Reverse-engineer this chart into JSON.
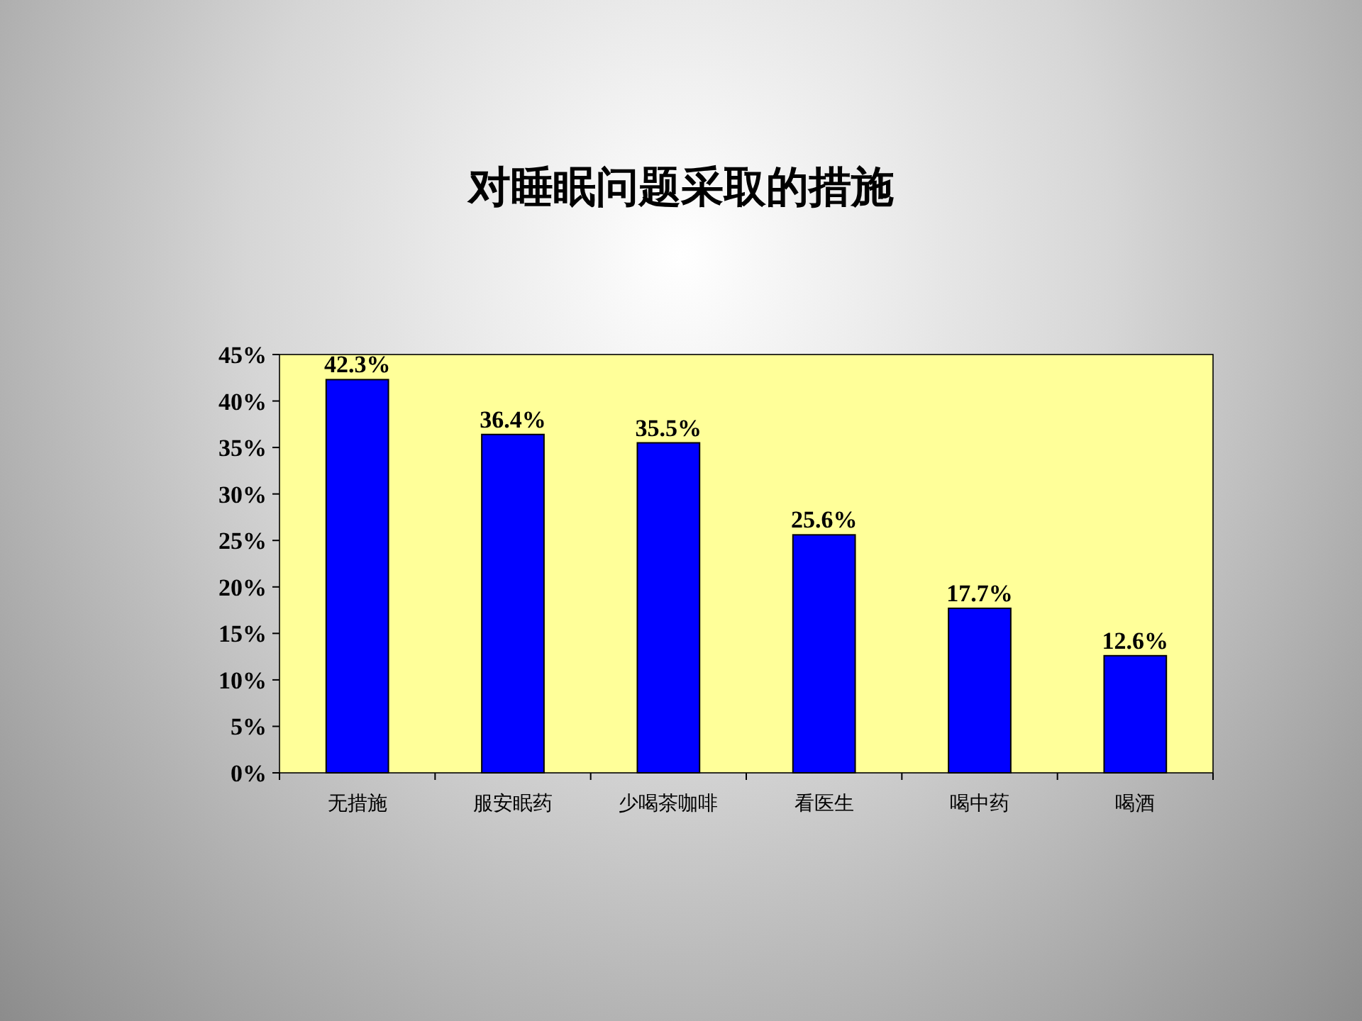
{
  "chart_data": {
    "type": "bar",
    "title": "对睡眠问题采取的措施",
    "categories": [
      "无措施",
      "服安眠药",
      "少喝茶咖啡",
      "看医生",
      "喝中药",
      "喝酒"
    ],
    "values": [
      42.3,
      36.4,
      35.5,
      25.6,
      17.7,
      12.6
    ],
    "value_labels": [
      "42.3%",
      "36.4%",
      "35.5%",
      "25.6%",
      "17.7%",
      "12.6%"
    ],
    "color": "#0000ff",
    "ylim": [
      0,
      45
    ],
    "yticks": [
      {
        "value": 0,
        "label": "0%"
      },
      {
        "value": 5,
        "label": "5%"
      },
      {
        "value": 10,
        "label": "10%"
      },
      {
        "value": 15,
        "label": "15%"
      },
      {
        "value": 20,
        "label": "20%"
      },
      {
        "value": 25,
        "label": "25%"
      },
      {
        "value": 30,
        "label": "30%"
      },
      {
        "value": 35,
        "label": "35%"
      },
      {
        "value": 40,
        "label": "40%"
      },
      {
        "value": 45,
        "label": "45%"
      }
    ],
    "grid": false
  }
}
